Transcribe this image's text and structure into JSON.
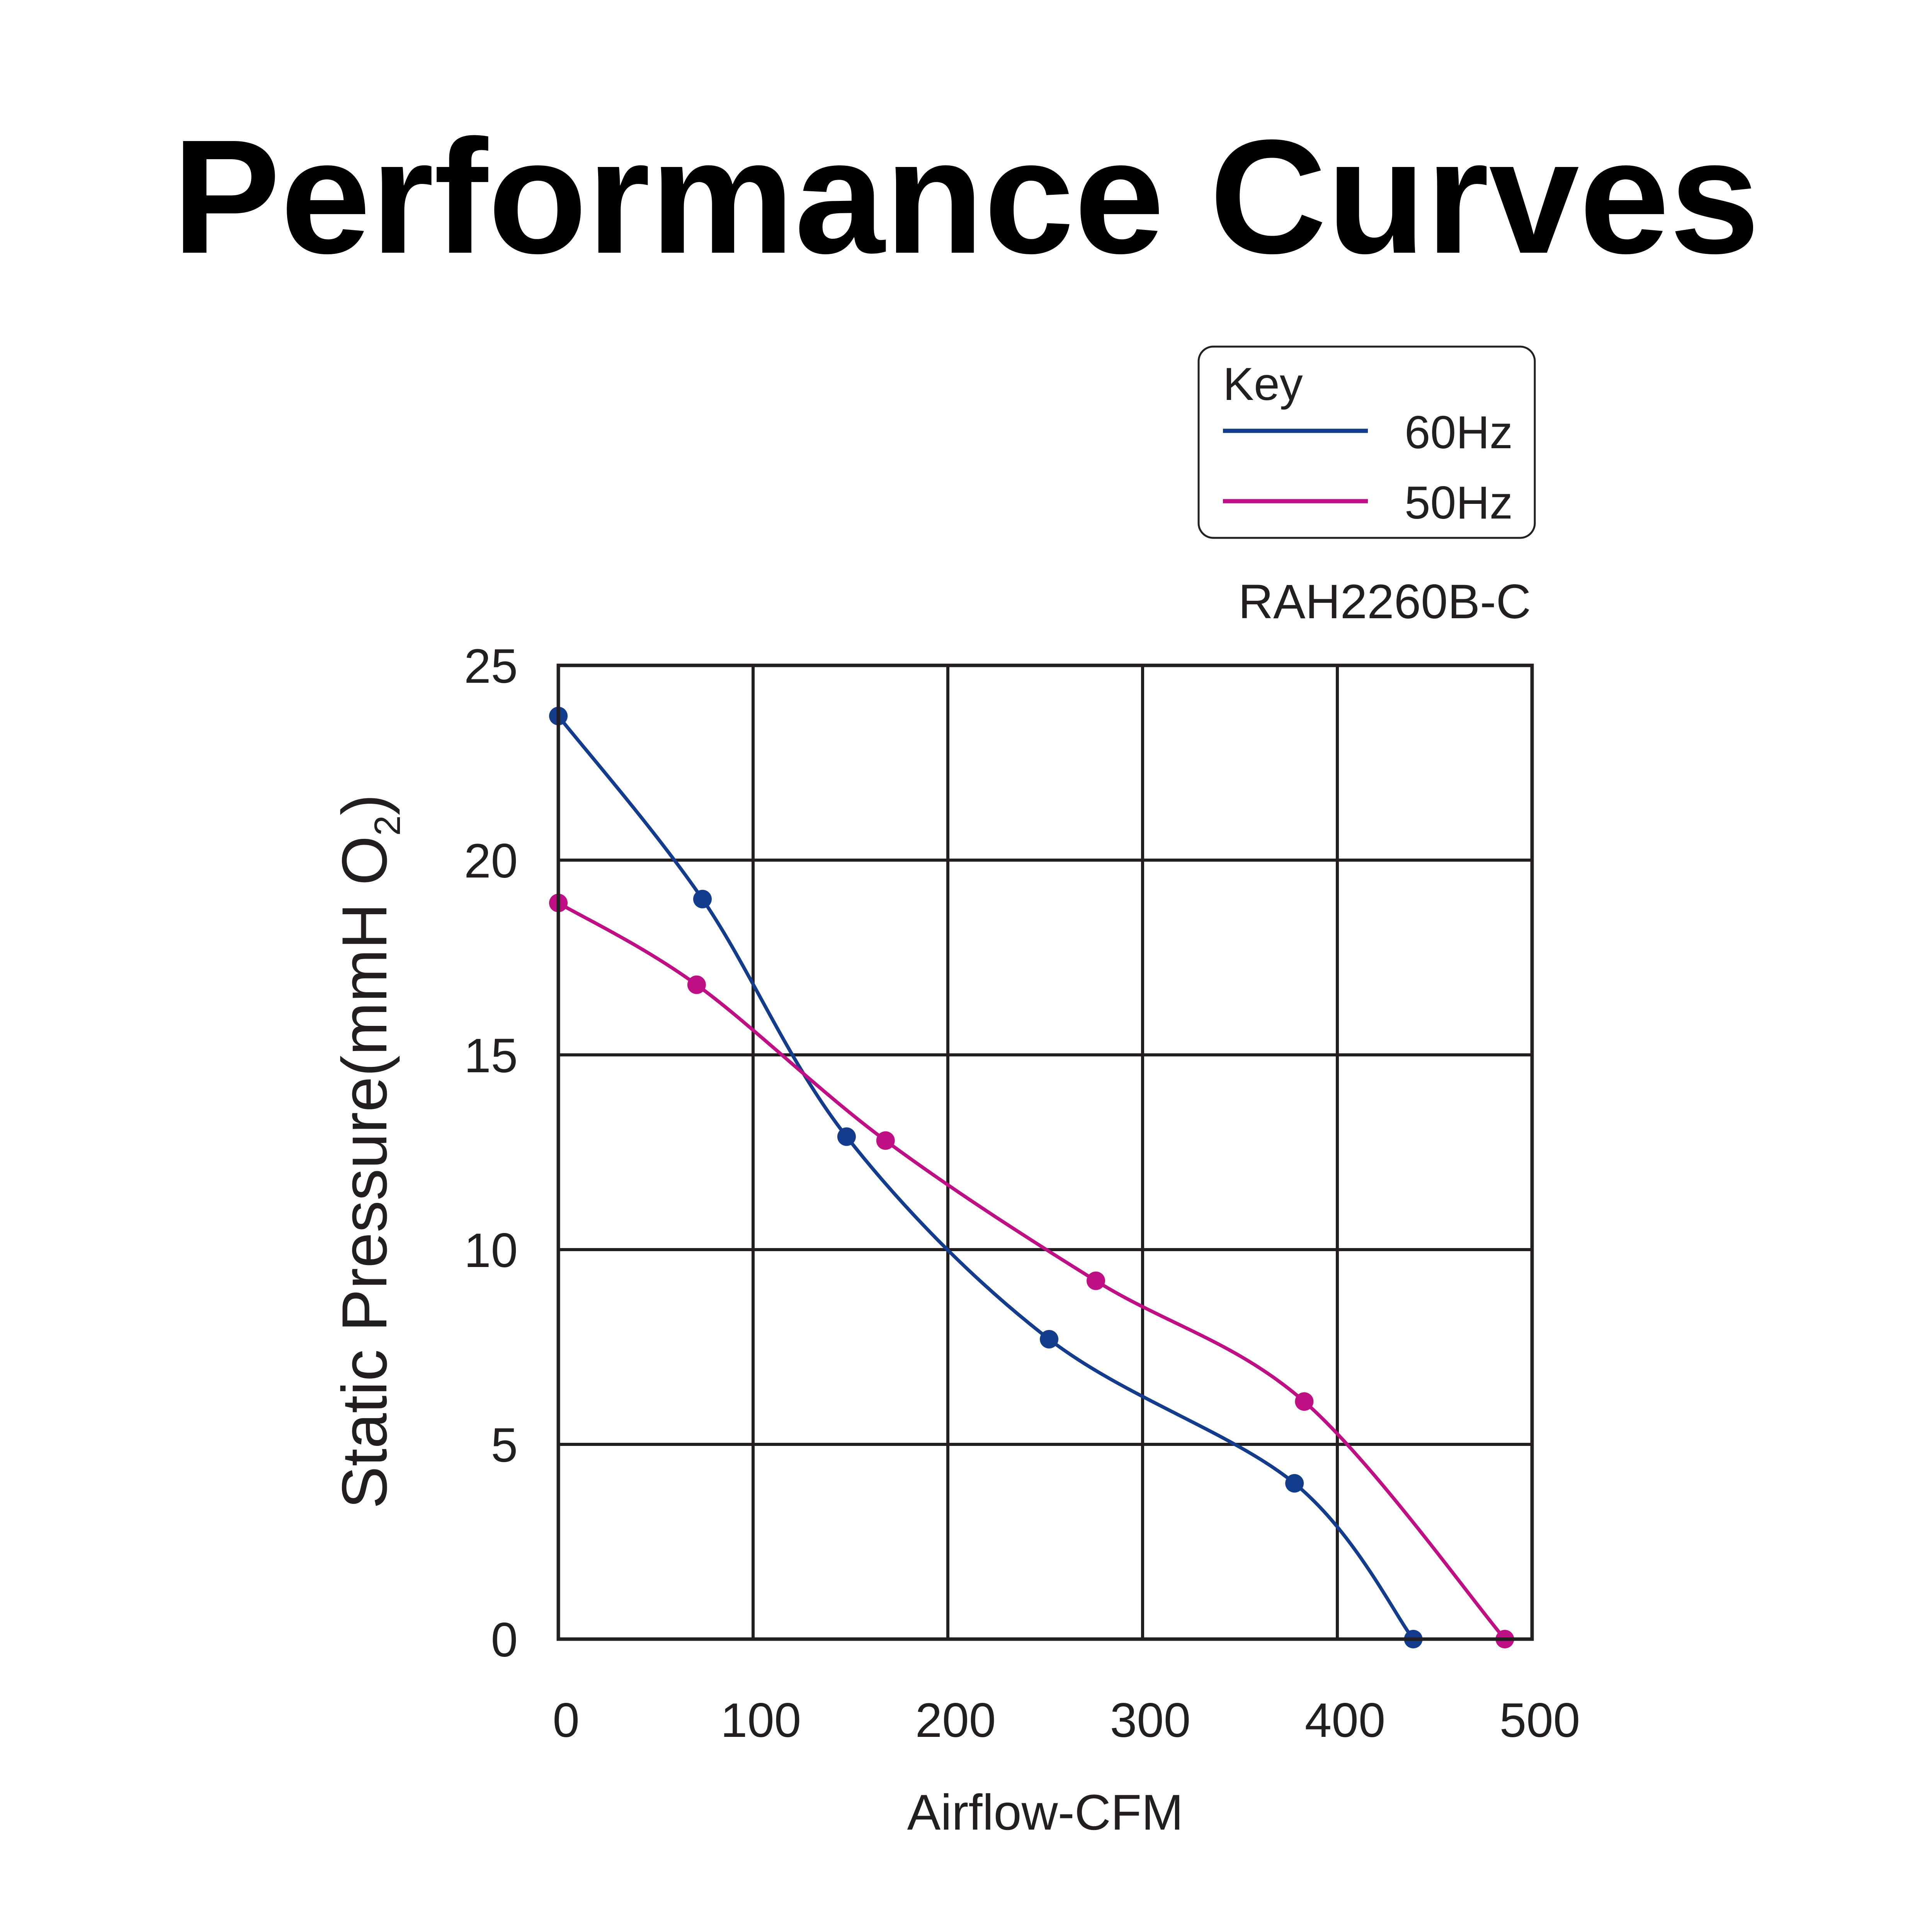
{
  "title": "Performance Curves",
  "chart_data": {
    "type": "line",
    "model": "RAH2260B-C",
    "xlabel": "Airflow-CFM",
    "ylabel": "Static Pressure(mmH O",
    "ylabel_subscript": "2",
    "ylabel_close": ")",
    "xlim": [
      0,
      500
    ],
    "ylim": [
      0,
      25
    ],
    "xticks": [
      0,
      100,
      200,
      300,
      400,
      500
    ],
    "yticks": [
      0,
      5,
      10,
      15,
      20,
      25
    ],
    "grid": true,
    "legend": {
      "title": "Key",
      "position": "top-right",
      "entries": [
        "60Hz",
        "50Hz"
      ]
    },
    "series": [
      {
        "name": "60Hz",
        "color": "#133c8c",
        "points": [
          [
            0,
            23.7
          ],
          [
            74,
            19.0
          ],
          [
            148,
            12.9
          ],
          [
            252,
            7.7
          ],
          [
            378,
            4.0
          ],
          [
            439,
            0
          ]
        ]
      },
      {
        "name": "50Hz",
        "color": "#bf0f84",
        "points": [
          [
            0,
            18.9
          ],
          [
            71,
            16.8
          ],
          [
            168,
            12.8
          ],
          [
            276,
            9.2
          ],
          [
            383,
            6.1
          ],
          [
            486,
            0
          ]
        ]
      }
    ]
  }
}
